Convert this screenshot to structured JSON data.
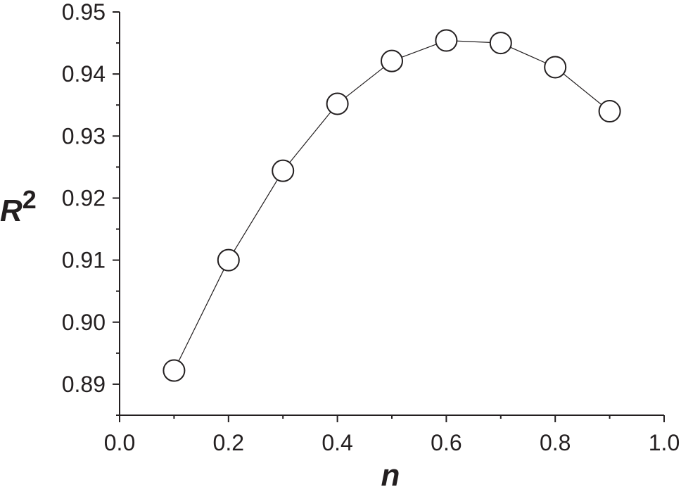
{
  "chart_data": {
    "type": "line",
    "xlabel": "n",
    "ylabel": "R",
    "ylabel_superscript": "2",
    "xlim": [
      0.0,
      1.0
    ],
    "ylim": [
      0.885,
      0.95
    ],
    "x_ticks": [
      "0.0",
      "0.2",
      "0.4",
      "0.6",
      "0.8",
      "1.0"
    ],
    "y_ticks": [
      "0.89",
      "0.90",
      "0.91",
      "0.92",
      "0.93",
      "0.94",
      "0.95"
    ],
    "grid": false,
    "marker": "open-circle",
    "line_color": "#231f20",
    "series": [
      {
        "x": [
          0.1,
          0.2,
          0.3,
          0.4,
          0.5,
          0.6,
          0.7,
          0.8,
          0.9
        ],
        "y": [
          0.8922,
          0.91,
          0.9244,
          0.9352,
          0.9421,
          0.9454,
          0.945,
          0.9411,
          0.934
        ]
      }
    ]
  }
}
